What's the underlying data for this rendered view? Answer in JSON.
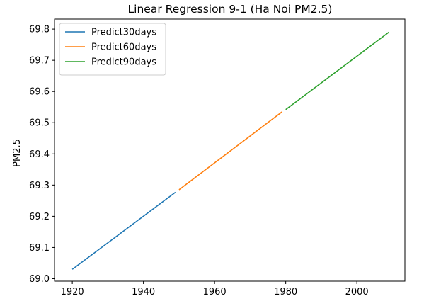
{
  "chart_data": {
    "type": "line",
    "title": "Linear Regression 9-1 (Ha Noi PM2.5)",
    "xlabel": "",
    "ylabel": "PM2.5",
    "xlim": [
      1915,
      2013.5
    ],
    "ylim": [
      68.992,
      69.832
    ],
    "xticks": [
      1920,
      1940,
      1960,
      1980,
      2000
    ],
    "yticks": [
      69.0,
      69.1,
      69.2,
      69.3,
      69.4,
      69.5,
      69.6,
      69.7,
      69.8
    ],
    "ytick_labels": [
      "69.0",
      "69.1",
      "69.2",
      "69.3",
      "69.4",
      "69.5",
      "69.6",
      "69.7",
      "69.8"
    ],
    "grid": false,
    "legend_position": "top-left",
    "series": [
      {
        "name": "Predict30days",
        "color": "#1f77b4",
        "x": [
          1920,
          1949
        ],
        "y": [
          69.03,
          69.277
        ]
      },
      {
        "name": "Predict60days",
        "color": "#ff7f0e",
        "x": [
          1950,
          1979
        ],
        "y": [
          69.285,
          69.535
        ]
      },
      {
        "name": "Predict90days",
        "color": "#2ca02c",
        "x": [
          1980,
          2009
        ],
        "y": [
          69.542,
          69.79
        ]
      }
    ]
  }
}
